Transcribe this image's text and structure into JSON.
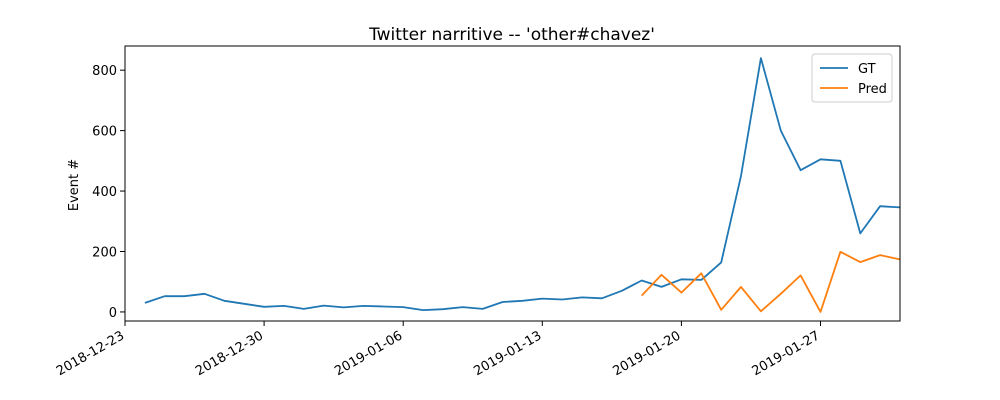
{
  "chart_data": {
    "type": "line",
    "title": "Twitter narritive -- 'other#chavez'",
    "xlabel": "",
    "ylabel": "Event #",
    "x_type": "date",
    "xlim": [
      "2018-12-23",
      "2019-01-31"
    ],
    "ylim": [
      -30,
      880
    ],
    "x_ticks": [
      "2018-12-23",
      "2018-12-30",
      "2019-01-06",
      "2019-01-13",
      "2019-01-20",
      "2019-01-27"
    ],
    "y_ticks": [
      0,
      200,
      400,
      600,
      800
    ],
    "grid": false,
    "legend": "top-right",
    "series": [
      {
        "name": "GT",
        "color": "#1f77b4",
        "points": [
          [
            "2018-12-24",
            30
          ],
          [
            "2018-12-25",
            52
          ],
          [
            "2018-12-26",
            52
          ],
          [
            "2018-12-27",
            60
          ],
          [
            "2018-12-28",
            37
          ],
          [
            "2018-12-29",
            27
          ],
          [
            "2018-12-30",
            17
          ],
          [
            "2018-12-31",
            20
          ],
          [
            "2019-01-01",
            10
          ],
          [
            "2019-01-02",
            21
          ],
          [
            "2019-01-03",
            15
          ],
          [
            "2019-01-04",
            20
          ],
          [
            "2019-01-05",
            18
          ],
          [
            "2019-01-06",
            16
          ],
          [
            "2019-01-07",
            6
          ],
          [
            "2019-01-08",
            9
          ],
          [
            "2019-01-09",
            16
          ],
          [
            "2019-01-10",
            10
          ],
          [
            "2019-01-11",
            33
          ],
          [
            "2019-01-12",
            37
          ],
          [
            "2019-01-13",
            44
          ],
          [
            "2019-01-14",
            41
          ],
          [
            "2019-01-15",
            48
          ],
          [
            "2019-01-16",
            45
          ],
          [
            "2019-01-17",
            70
          ],
          [
            "2019-01-18",
            104
          ],
          [
            "2019-01-19",
            83
          ],
          [
            "2019-01-20",
            108
          ],
          [
            "2019-01-21",
            106
          ],
          [
            "2019-01-22",
            164
          ],
          [
            "2019-01-23",
            450
          ],
          [
            "2019-01-24",
            840
          ],
          [
            "2019-01-25",
            600
          ],
          [
            "2019-01-26",
            469
          ],
          [
            "2019-01-27",
            505
          ],
          [
            "2019-01-28",
            500
          ],
          [
            "2019-01-29",
            260
          ],
          [
            "2019-01-30",
            350
          ],
          [
            "2019-01-31",
            346
          ]
        ]
      },
      {
        "name": "Pred",
        "color": "#ff7f0e",
        "points": [
          [
            "2019-01-18",
            54
          ],
          [
            "2019-01-19",
            123
          ],
          [
            "2019-01-20",
            64
          ],
          [
            "2019-01-21",
            128
          ],
          [
            "2019-01-22",
            7
          ],
          [
            "2019-01-23",
            83
          ],
          [
            "2019-01-24",
            2
          ],
          [
            "2019-01-25",
            60
          ],
          [
            "2019-01-26",
            121
          ],
          [
            "2019-01-27",
            0
          ],
          [
            "2019-01-28",
            199
          ],
          [
            "2019-01-29",
            165
          ],
          [
            "2019-01-30",
            188
          ],
          [
            "2019-01-31",
            174
          ]
        ]
      }
    ]
  }
}
